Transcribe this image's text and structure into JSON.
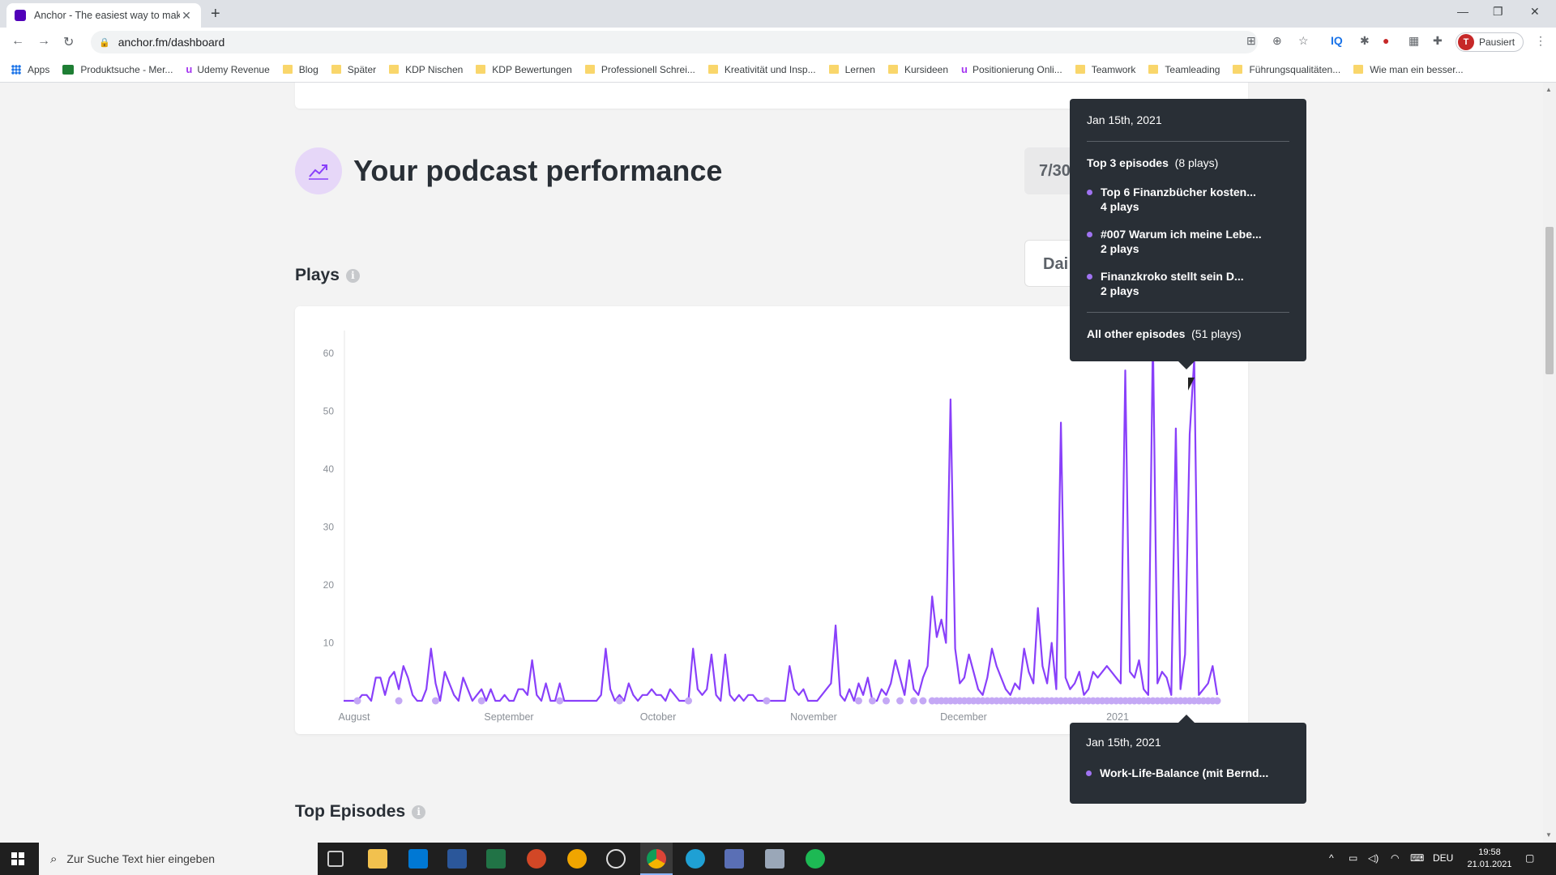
{
  "browser": {
    "tab_title": "Anchor - The easiest way to mak",
    "url": "anchor.fm/dashboard",
    "profile_label": "Pausiert",
    "profile_initial": "T",
    "bookmarks": [
      {
        "label": "Apps",
        "icon": "apps-grid-icon"
      },
      {
        "label": "Produktsuche - Mer...",
        "icon": "green-square-icon"
      },
      {
        "label": "Udemy Revenue",
        "icon": "udemy-icon"
      },
      {
        "label": "Blog",
        "icon": "folder-icon"
      },
      {
        "label": "Später",
        "icon": "folder-icon"
      },
      {
        "label": "KDP Nischen",
        "icon": "folder-icon"
      },
      {
        "label": "KDP Bewertungen",
        "icon": "folder-icon"
      },
      {
        "label": "Professionell Schrei...",
        "icon": "folder-icon"
      },
      {
        "label": "Kreativität und Insp...",
        "icon": "folder-icon"
      },
      {
        "label": "Lernen",
        "icon": "folder-icon"
      },
      {
        "label": "Kursideen",
        "icon": "folder-icon"
      },
      {
        "label": "Positionierung Onli...",
        "icon": "udemy-icon"
      },
      {
        "label": "Teamwork",
        "icon": "folder-icon"
      },
      {
        "label": "Teamleading",
        "icon": "folder-icon"
      },
      {
        "label": "Führungsqualitäten...",
        "icon": "folder-icon"
      },
      {
        "label": "Wie man ein besser...",
        "icon": "folder-icon"
      }
    ]
  },
  "dashboard": {
    "performance_title": "Your podcast performance",
    "range_label": "7/30",
    "plays_label": "Plays",
    "interval_label": "Dai",
    "top_episodes_label": "Top Episodes"
  },
  "tooltip_top": {
    "date": "Jan 15th, 2021",
    "heading": "Top 3 episodes",
    "heading_plays": "(8 plays)",
    "episodes": [
      {
        "title": "Top 6 Finanzbücher kosten...",
        "plays": "4 plays"
      },
      {
        "title": "#007 Warum ich meine Lebe...",
        "plays": "2 plays"
      },
      {
        "title": "Finanzkroko stellt sein D...",
        "plays": "2 plays"
      }
    ],
    "other": "All other episodes",
    "other_plays": "(51 plays)"
  },
  "tooltip_bottom": {
    "date": "Jan 15th, 2021",
    "episode": "Work-Life-Balance (mit Bernd..."
  },
  "chart_data": {
    "type": "line",
    "y_ticks": [
      10,
      20,
      30,
      40,
      50,
      60
    ],
    "x_tick_labels": [
      "August",
      "September",
      "October",
      "November",
      "December",
      "2021"
    ],
    "ylim": [
      0,
      65
    ],
    "line_color": "#8940fa",
    "marker_color": "#c4a8f5",
    "values": [
      0,
      0,
      0,
      0,
      1,
      1,
      0,
      4,
      4,
      1,
      4,
      5,
      2,
      6,
      4,
      1,
      0,
      0,
      2,
      9,
      3,
      0,
      5,
      3,
      1,
      0,
      4,
      2,
      0,
      1,
      2,
      0,
      2,
      0,
      0,
      1,
      0,
      0,
      2,
      2,
      1,
      7,
      1,
      0,
      3,
      0,
      0,
      3,
      0,
      0,
      0,
      0,
      0,
      0,
      0,
      0,
      1,
      9,
      2,
      0,
      1,
      0,
      3,
      1,
      0,
      1,
      1,
      2,
      1,
      1,
      0,
      2,
      1,
      0,
      0,
      0,
      9,
      2,
      1,
      2,
      8,
      1,
      0,
      8,
      1,
      0,
      1,
      0,
      1,
      1,
      0,
      0,
      0,
      0,
      0,
      0,
      0,
      6,
      2,
      1,
      2,
      0,
      0,
      0,
      1,
      2,
      3,
      13,
      1,
      0,
      2,
      0,
      3,
      1,
      4,
      0,
      0,
      2,
      1,
      3,
      7,
      4,
      1,
      7,
      2,
      1,
      4,
      6,
      18,
      11,
      14,
      10,
      52,
      9,
      3,
      4,
      8,
      5,
      2,
      1,
      4,
      9,
      6,
      4,
      2,
      1,
      3,
      2,
      9,
      5,
      3,
      16,
      6,
      3,
      10,
      2,
      48,
      4,
      2,
      3,
      5,
      1,
      2,
      5,
      4,
      5,
      6,
      5,
      4,
      3,
      57,
      5,
      4,
      7,
      2,
      1,
      63,
      3,
      5,
      4,
      1,
      47,
      2,
      8,
      46,
      59,
      1,
      2,
      3,
      6,
      1
    ],
    "marker_start_index": 128
  },
  "taskbar": {
    "search_placeholder": "Zur Suche Text hier eingeben",
    "language": "DEU",
    "time": "19:58",
    "date": "21.01.2021"
  }
}
